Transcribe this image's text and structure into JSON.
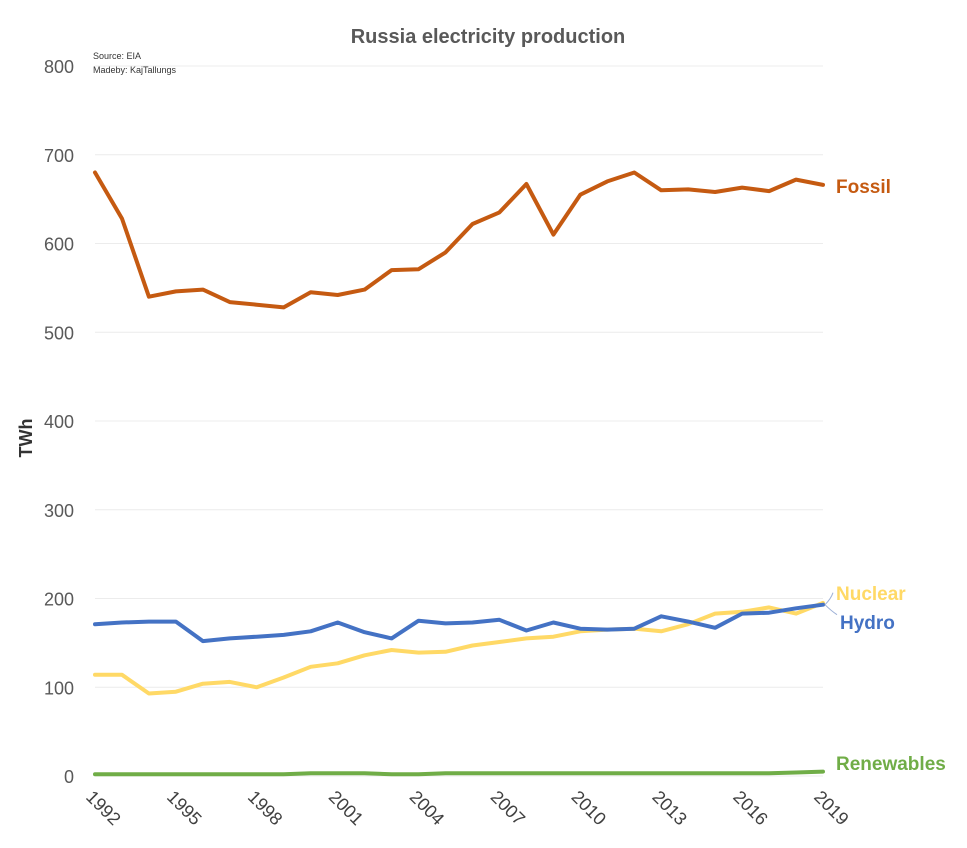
{
  "chart_data": {
    "type": "line",
    "title": "Russia electricity production",
    "notes": [
      "Source: EIA",
      "Madeby: KajTallungs"
    ],
    "xlabel": "",
    "ylabel": "TWh",
    "xlim": [
      1992,
      2019
    ],
    "ylim": [
      0,
      800
    ],
    "yticks": [
      0,
      100,
      200,
      300,
      400,
      500,
      600,
      700,
      800
    ],
    "xticks": [
      1992,
      1995,
      1998,
      2001,
      2004,
      2007,
      2010,
      2013,
      2016,
      2019
    ],
    "grid": "horizontal",
    "legend": "labels at line ends",
    "x": [
      1992,
      1993,
      1994,
      1995,
      1996,
      1997,
      1998,
      1999,
      2000,
      2001,
      2002,
      2003,
      2004,
      2005,
      2006,
      2007,
      2008,
      2009,
      2010,
      2011,
      2012,
      2013,
      2014,
      2015,
      2016,
      2017,
      2018,
      2019
    ],
    "series": [
      {
        "name": "Fossil",
        "color": "#c55a11",
        "values": [
          680,
          628,
          540,
          546,
          548,
          534,
          531,
          528,
          545,
          542,
          548,
          570,
          571,
          590,
          622,
          635,
          667,
          610,
          655,
          670,
          680,
          660,
          661,
          658,
          663,
          659,
          672,
          666
        ]
      },
      {
        "name": "Nuclear",
        "color": "#ffd966",
        "values": [
          114,
          114,
          93,
          95,
          104,
          106,
          100,
          111,
          123,
          127,
          136,
          142,
          139,
          140,
          147,
          151,
          155,
          157,
          163,
          165,
          166,
          163,
          171,
          183,
          185,
          190,
          183,
          195
        ]
      },
      {
        "name": "Hydro",
        "color": "#4472c4",
        "values": [
          171,
          173,
          174,
          174,
          152,
          155,
          157,
          159,
          163,
          173,
          162,
          155,
          175,
          172,
          173,
          176,
          164,
          173,
          166,
          165,
          166,
          180,
          174,
          167,
          183,
          184,
          189,
          193
        ]
      },
      {
        "name": "Renewables",
        "color": "#70ad47",
        "values": [
          2,
          2,
          2,
          2,
          2,
          2,
          2,
          2,
          3,
          3,
          3,
          2,
          2,
          3,
          3,
          3,
          3,
          3,
          3,
          3,
          3,
          3,
          3,
          3,
          3,
          3,
          4,
          5
        ]
      }
    ]
  }
}
